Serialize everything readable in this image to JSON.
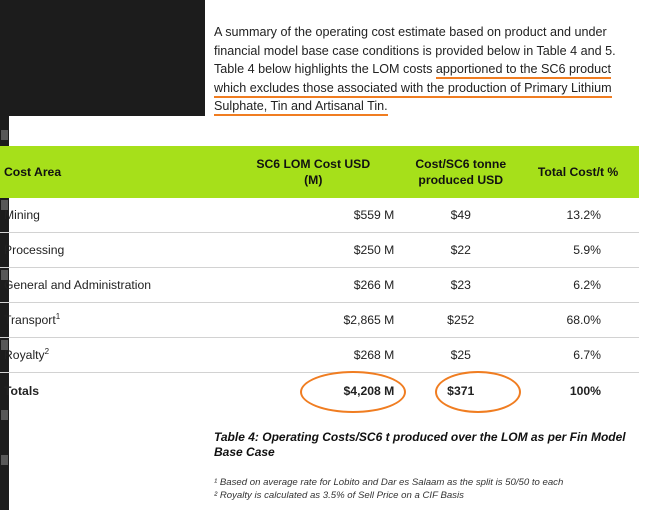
{
  "intro": {
    "part1": "A summary of the operating cost estimate based on product and under financial model base case conditions is provided below in Table 4 and 5. Table 4 below highlights the LOM costs ",
    "highlight1": "apportioned to the SC6 product",
    "highlight2": "which excludes those associated with the production of Primary Lithium Sulphate, Tin and Artisanal Tin."
  },
  "table": {
    "headers": [
      "Cost Area",
      "SC6 LOM Cost USD (M)",
      "Cost/SC6 tonne produced USD",
      "Total Cost/t %"
    ],
    "rows": [
      {
        "area": "Mining",
        "sup": "",
        "lom": "$559 M",
        "per_t": "$49",
        "pct": "13.2%"
      },
      {
        "area": "Processing",
        "sup": "",
        "lom": "$250 M",
        "per_t": "$22",
        "pct": "5.9%"
      },
      {
        "area": "General and Administration",
        "sup": "",
        "lom": "$266 M",
        "per_t": "$23",
        "pct": "6.2%"
      },
      {
        "area": "Transport",
        "sup": "1",
        "lom": "$2,865 M",
        "per_t": "$252",
        "pct": "68.0%"
      },
      {
        "area": "Royalty",
        "sup": "2",
        "lom": "$268 M",
        "per_t": "$25",
        "pct": "6.7%"
      }
    ],
    "totals": {
      "area": "Totals",
      "lom": "$4,208 M",
      "per_t": "$371",
      "pct": "100%"
    }
  },
  "caption": "Table 4: Operating Costs/SC6 t produced over the LOM as per Fin Model Base Case",
  "notes": [
    "¹ Based on average rate for Lobito and Dar es Salaam as the split is 50/50 to each",
    "² Royalty is calculated as 3.5% of Sell Price on a CIF Basis"
  ],
  "colors": {
    "header_green": "#a6e01a",
    "highlight_orange": "#f07d21",
    "dark_panel": "#1c1c1c"
  }
}
